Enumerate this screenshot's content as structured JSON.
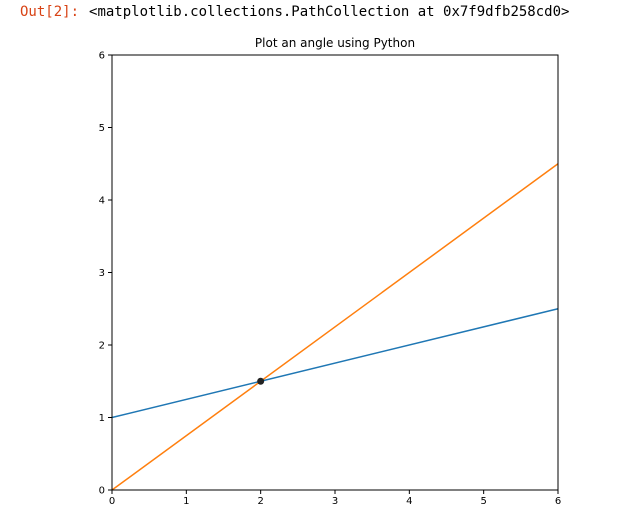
{
  "output": {
    "prompt": "Out[2]:",
    "text": "<matplotlib.collections.PathCollection at 0x7f9dfb258cd0>",
    "prompt_color": "#d84315"
  },
  "chart_data": {
    "type": "line",
    "title": "Plot an angle using Python",
    "xlabel": "",
    "ylabel": "",
    "xlim": [
      0,
      6
    ],
    "ylim": [
      0,
      6
    ],
    "xticks": [
      0,
      1,
      2,
      3,
      4,
      5,
      6
    ],
    "yticks": [
      0,
      1,
      2,
      3,
      4,
      5,
      6
    ],
    "grid": false,
    "series": [
      {
        "x": [
          0,
          6
        ],
        "y": [
          1,
          2.5
        ],
        "color": "#1f77b4"
      },
      {
        "x": [
          0,
          6
        ],
        "y": [
          0,
          4.5
        ],
        "color": "#ff7f0e"
      }
    ],
    "scatter": [
      {
        "x": 2,
        "y": 1.5,
        "color": "#222222"
      }
    ]
  }
}
